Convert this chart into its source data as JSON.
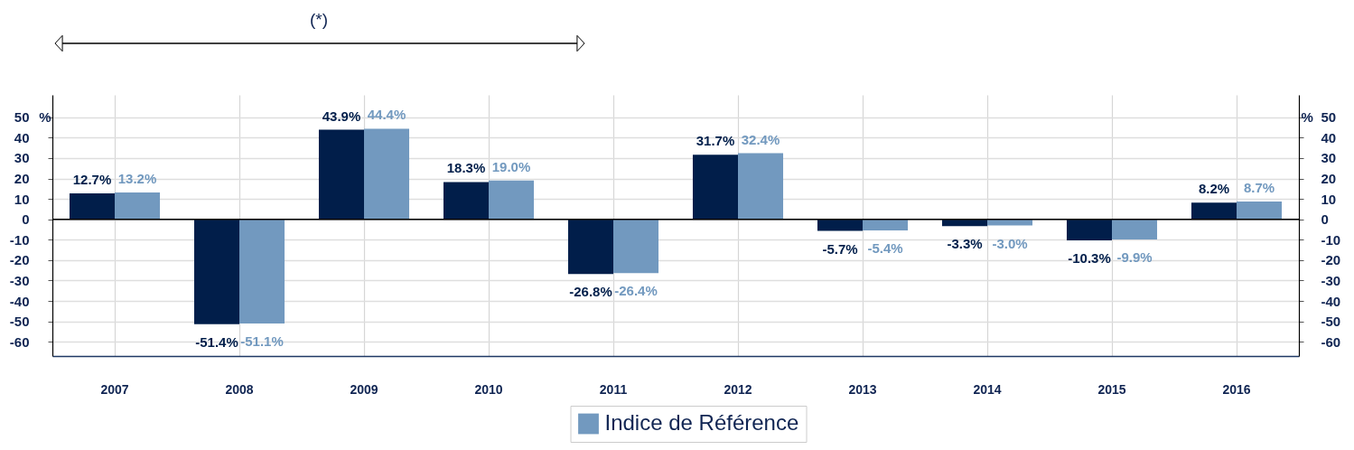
{
  "chart_data": {
    "type": "bar",
    "categories": [
      "2007",
      "2008",
      "2009",
      "2010",
      "2011",
      "2012",
      "2013",
      "2014",
      "2015",
      "2016"
    ],
    "series": [
      {
        "color": "#011e4a",
        "values": [
          12.7,
          -51.4,
          43.9,
          18.3,
          -26.8,
          31.7,
          -5.7,
          -3.3,
          -10.3,
          8.2
        ],
        "value_labels": [
          "12.7%",
          "-51.4%",
          "43.9%",
          "18.3%",
          "-26.8%",
          "31.7%",
          "-5.7%",
          "-3.3%",
          "-10.3%",
          "8.2%"
        ]
      },
      {
        "name": "Indice de Référence",
        "color": "#7299bf",
        "values": [
          13.2,
          -51.1,
          44.4,
          19.0,
          -26.4,
          32.4,
          -5.4,
          -3.0,
          -9.9,
          8.7
        ],
        "value_labels": [
          "13.2%",
          "-51.1%",
          "44.4%",
          "19.0%",
          "-26.4%",
          "32.4%",
          "-5.4%",
          "-3.0%",
          "-9.9%",
          "8.7%"
        ]
      }
    ],
    "ylabel": "%",
    "y2label": "%",
    "ylim": [
      -67,
      61
    ],
    "yticks": [
      50,
      40,
      30,
      20,
      10,
      0,
      -10,
      -20,
      -30,
      -40,
      -50,
      -60
    ],
    "y2lim": [
      -67,
      61
    ],
    "y2ticks": [
      50,
      40,
      30,
      20,
      10,
      0,
      -10,
      -20,
      -30,
      -40,
      -50,
      -60
    ],
    "ref_lines": [
      {
        "axis": "y",
        "value": 0,
        "color": "#000000"
      }
    ],
    "annotations": [
      "(*)"
    ],
    "grid": true,
    "legend": "bottom"
  }
}
